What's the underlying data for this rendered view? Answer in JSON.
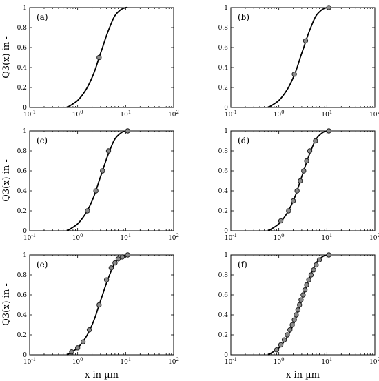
{
  "figure": {
    "ylabel": "Q3(x) in -",
    "xlabel": "x in µm"
  },
  "chart_data": [
    {
      "type": "line",
      "panel": "(a)",
      "xscale": "log",
      "xlim": [
        0.1,
        100
      ],
      "ylim": [
        0,
        1
      ],
      "xticks": [
        "10-1",
        "100",
        "101",
        "102"
      ],
      "yticks": [
        "0",
        "0.2",
        "0.4",
        "0.6",
        "0.8",
        "1"
      ],
      "curve": {
        "x": [
          0.6,
          1.0,
          1.5,
          2.0,
          2.4,
          2.8,
          3.3,
          4.0,
          5.0,
          6.0,
          8.0,
          10.0,
          11.0
        ],
        "y": [
          0,
          0.07,
          0.18,
          0.3,
          0.4,
          0.5,
          0.6,
          0.72,
          0.84,
          0.92,
          0.98,
          1,
          1
        ]
      },
      "markers": {
        "x": [
          2.8
        ],
        "y": [
          0.5
        ]
      }
    },
    {
      "type": "line",
      "panel": "(b)",
      "xscale": "log",
      "xlim": [
        0.1,
        100
      ],
      "ylim": [
        0,
        1
      ],
      "xticks": [
        "10-1",
        "100",
        "101",
        "102"
      ],
      "yticks": [
        "0",
        "0.2",
        "0.4",
        "0.6",
        "0.8",
        "1"
      ],
      "curve": {
        "x": [
          0.6,
          1.0,
          1.5,
          2.0,
          2.4,
          2.8,
          3.3,
          4.0,
          5.0,
          6.0,
          8.0,
          10.0,
          11.0
        ],
        "y": [
          0,
          0.07,
          0.18,
          0.3,
          0.4,
          0.5,
          0.6,
          0.72,
          0.84,
          0.92,
          0.98,
          1,
          1
        ]
      },
      "markers": {
        "x": [
          2.1,
          3.6,
          11.0
        ],
        "y": [
          0.333,
          0.667,
          1
        ]
      }
    },
    {
      "type": "line",
      "panel": "(c)",
      "xscale": "log",
      "xlim": [
        0.1,
        100
      ],
      "ylim": [
        0,
        1
      ],
      "xticks": [
        "10-1",
        "100",
        "101",
        "102"
      ],
      "yticks": [
        "0",
        "0.2",
        "0.4",
        "0.6",
        "0.8",
        "1"
      ],
      "curve": {
        "x": [
          0.6,
          1.0,
          1.5,
          2.0,
          2.4,
          2.8,
          3.3,
          4.0,
          5.0,
          6.0,
          8.0,
          10.0,
          11.0
        ],
        "y": [
          0,
          0.07,
          0.18,
          0.3,
          0.4,
          0.5,
          0.6,
          0.72,
          0.84,
          0.92,
          0.98,
          1,
          1
        ]
      },
      "markers": {
        "x": [
          1.6,
          2.4,
          3.3,
          4.4,
          11.0
        ],
        "y": [
          0.2,
          0.4,
          0.6,
          0.8,
          1
        ]
      }
    },
    {
      "type": "line",
      "panel": "(d)",
      "xscale": "log",
      "xlim": [
        0.1,
        100
      ],
      "ylim": [
        0,
        1
      ],
      "xticks": [
        "10-1",
        "100",
        "101",
        "102"
      ],
      "yticks": [
        "0",
        "0.2",
        "0.4",
        "0.6",
        "0.8",
        "1"
      ],
      "curve": {
        "x": [
          0.6,
          1.0,
          1.5,
          2.0,
          2.4,
          2.8,
          3.3,
          4.0,
          5.0,
          6.0,
          8.0,
          10.0,
          11.0
        ],
        "y": [
          0,
          0.07,
          0.18,
          0.3,
          0.4,
          0.5,
          0.6,
          0.72,
          0.84,
          0.92,
          0.98,
          1,
          1
        ]
      },
      "markers": {
        "x": [
          1.1,
          1.6,
          2.0,
          2.4,
          2.8,
          3.3,
          3.8,
          4.4,
          5.8,
          11.0
        ],
        "y": [
          0.1,
          0.2,
          0.3,
          0.4,
          0.5,
          0.6,
          0.7,
          0.8,
          0.9,
          1
        ]
      }
    },
    {
      "type": "line",
      "panel": "(e)",
      "xscale": "log",
      "xlim": [
        0.1,
        100
      ],
      "ylim": [
        0,
        1
      ],
      "xticks": [
        "10-1",
        "100",
        "101",
        "102"
      ],
      "yticks": [
        "0",
        "0.2",
        "0.4",
        "0.6",
        "0.8",
        "1"
      ],
      "curve": {
        "x": [
          0.6,
          1.0,
          1.5,
          2.0,
          2.4,
          2.8,
          3.3,
          4.0,
          5.0,
          6.0,
          8.0,
          10.0,
          11.0
        ],
        "y": [
          0,
          0.07,
          0.18,
          0.3,
          0.4,
          0.5,
          0.6,
          0.72,
          0.84,
          0.92,
          0.98,
          1,
          1
        ]
      },
      "markers": {
        "x": [
          0.75,
          1.0,
          1.3,
          1.75,
          2.8,
          4.0,
          5.0,
          6.0,
          7.0,
          8.5,
          11.0
        ],
        "y": [
          0.03,
          0.07,
          0.13,
          0.25,
          0.5,
          0.75,
          0.87,
          0.92,
          0.96,
          0.98,
          1
        ]
      }
    },
    {
      "type": "line",
      "panel": "(f)",
      "xscale": "log",
      "xlim": [
        0.1,
        100
      ],
      "ylim": [
        0,
        1
      ],
      "xticks": [
        "10-1",
        "100",
        "101",
        "102"
      ],
      "yticks": [
        "0",
        "0.2",
        "0.4",
        "0.6",
        "0.8",
        "1"
      ],
      "curve": {
        "x": [
          0.6,
          1.0,
          1.5,
          2.0,
          2.4,
          2.8,
          3.3,
          4.0,
          5.0,
          6.0,
          8.0,
          10.0,
          11.0
        ],
        "y": [
          0,
          0.07,
          0.18,
          0.3,
          0.4,
          0.5,
          0.6,
          0.72,
          0.84,
          0.92,
          0.98,
          1,
          1
        ]
      },
      "markers": {
        "x": [
          0.9,
          1.1,
          1.3,
          1.5,
          1.7,
          1.9,
          2.1,
          2.3,
          2.5,
          2.7,
          2.9,
          3.2,
          3.5,
          3.8,
          4.2,
          4.7,
          5.3,
          6.0,
          7.0,
          11.0
        ],
        "y": [
          0.05,
          0.1,
          0.15,
          0.2,
          0.25,
          0.3,
          0.35,
          0.4,
          0.45,
          0.5,
          0.55,
          0.6,
          0.65,
          0.7,
          0.75,
          0.8,
          0.85,
          0.9,
          0.95,
          1
        ]
      }
    }
  ]
}
